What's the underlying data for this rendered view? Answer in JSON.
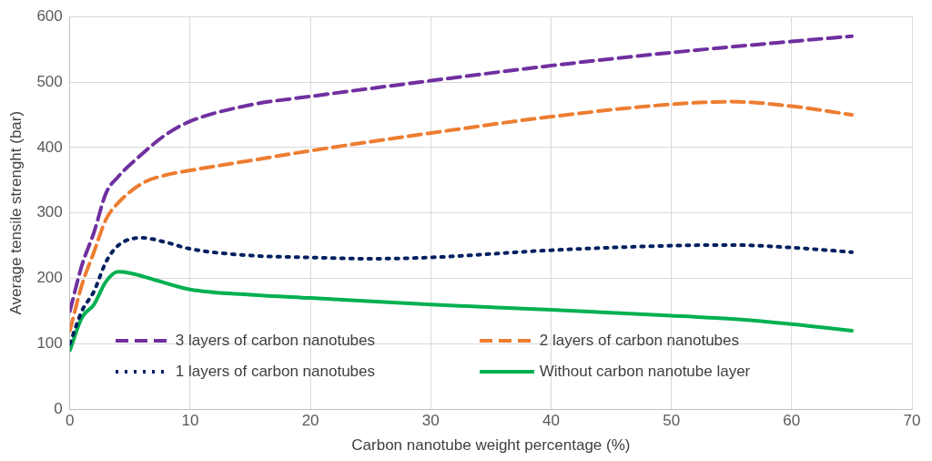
{
  "chart_data": {
    "type": "line",
    "xlabel": "Carbon nanotube weight percentage (%)",
    "ylabel": "Average tensile strenght (bar)",
    "xlim": [
      0,
      70
    ],
    "xticks": [
      0,
      10,
      20,
      30,
      40,
      50,
      60,
      70
    ],
    "ylim": [
      0,
      600
    ],
    "yticks": [
      0,
      100,
      200,
      300,
      400,
      500,
      600
    ],
    "grid": true,
    "legend": "bottom",
    "marker": "none",
    "series": [
      {
        "name": "3 layers of carbon nanotubes",
        "color": "#7030a0",
        "line_style": "dashed",
        "x": [
          0,
          1,
          2,
          3,
          4,
          6,
          8,
          10,
          15,
          20,
          30,
          40,
          50,
          60,
          65
        ],
        "values": [
          150,
          220,
          270,
          330,
          355,
          390,
          420,
          440,
          465,
          478,
          502,
          525,
          545,
          562,
          570
        ]
      },
      {
        "name": "2 layers of carbon nanotubes",
        "color": "#ed7d31",
        "line_style": "dashed",
        "x": [
          0,
          1,
          2,
          3,
          4,
          6,
          8,
          10,
          15,
          20,
          30,
          40,
          50,
          55,
          60,
          65
        ],
        "values": [
          120,
          190,
          240,
          290,
          315,
          345,
          358,
          365,
          380,
          395,
          422,
          447,
          466,
          470,
          463,
          450
        ]
      },
      {
        "name": "1 layers of carbon nanotubes",
        "color": "#002060",
        "line_style": "dotted",
        "x": [
          0,
          1,
          2,
          3,
          4,
          6,
          8,
          10,
          15,
          20,
          25,
          30,
          40,
          50,
          55,
          60,
          65
        ],
        "values": [
          100,
          150,
          180,
          225,
          250,
          262,
          255,
          245,
          235,
          232,
          230,
          232,
          243,
          250,
          251,
          247,
          240
        ]
      },
      {
        "name": "Without carbon nanotube layer",
        "color": "#00b050",
        "line_style": "solid",
        "x": [
          0,
          1,
          2,
          3,
          4,
          5,
          7,
          10,
          15,
          20,
          30,
          40,
          50,
          55,
          60,
          65
        ],
        "values": [
          90,
          140,
          160,
          195,
          210,
          208,
          198,
          183,
          175,
          170,
          160,
          152,
          143,
          138,
          130,
          120
        ]
      }
    ]
  }
}
